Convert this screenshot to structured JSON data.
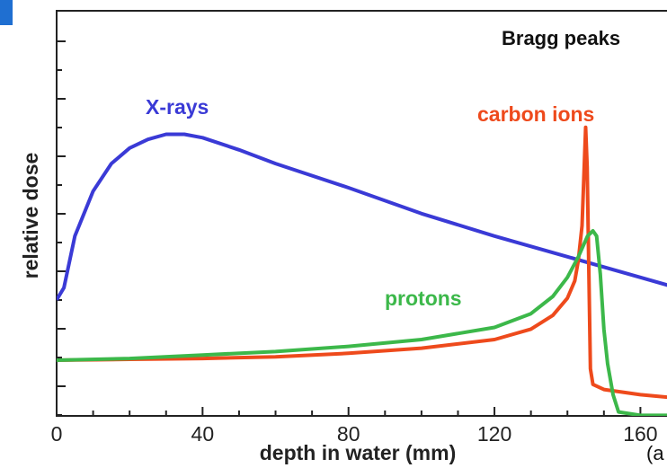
{
  "chart_data": {
    "type": "line",
    "title": "",
    "xlabel": "depth in water (mm)",
    "ylabel": "relative dose",
    "xlim": [
      0,
      170
    ],
    "x_ticks": [
      0,
      40,
      80,
      120,
      160
    ],
    "y_ticks_count": 7,
    "grid": false,
    "legend": "inline labels",
    "annotations": {
      "bragg": "Bragg peaks",
      "panel": "(a"
    },
    "series": [
      {
        "name": "X-rays",
        "color": "#3a3ad6",
        "points": [
          [
            0,
            0.35
          ],
          [
            2,
            0.42
          ],
          [
            5,
            0.72
          ],
          [
            10,
            0.98
          ],
          [
            15,
            1.14
          ],
          [
            20,
            1.23
          ],
          [
            25,
            1.28
          ],
          [
            30,
            1.31
          ],
          [
            35,
            1.31
          ],
          [
            40,
            1.29
          ],
          [
            50,
            1.22
          ],
          [
            60,
            1.14
          ],
          [
            80,
            1.0
          ],
          [
            100,
            0.85
          ],
          [
            120,
            0.72
          ],
          [
            140,
            0.6
          ],
          [
            160,
            0.48
          ],
          [
            170,
            0.42
          ]
        ]
      },
      {
        "name": "carbon ions",
        "color": "#ee4a1c",
        "points": [
          [
            0,
            0.0
          ],
          [
            20,
            0.005
          ],
          [
            40,
            0.01
          ],
          [
            60,
            0.02
          ],
          [
            80,
            0.04
          ],
          [
            100,
            0.07
          ],
          [
            120,
            0.12
          ],
          [
            130,
            0.18
          ],
          [
            136,
            0.26
          ],
          [
            140,
            0.36
          ],
          [
            142,
            0.46
          ],
          [
            143,
            0.58
          ],
          [
            144,
            0.78
          ],
          [
            144.6,
            1.12
          ],
          [
            145,
            1.35
          ],
          [
            145.4,
            1.12
          ],
          [
            145.8,
            0.6
          ],
          [
            146.3,
            -0.05
          ],
          [
            147,
            -0.14
          ],
          [
            150,
            -0.17
          ],
          [
            160,
            -0.2
          ],
          [
            170,
            -0.22
          ]
        ]
      },
      {
        "name": "protons",
        "color": "#3cb84a",
        "points": [
          [
            0,
            0.0
          ],
          [
            20,
            0.01
          ],
          [
            40,
            0.03
          ],
          [
            60,
            0.05
          ],
          [
            80,
            0.08
          ],
          [
            100,
            0.12
          ],
          [
            120,
            0.19
          ],
          [
            130,
            0.27
          ],
          [
            136,
            0.37
          ],
          [
            140,
            0.48
          ],
          [
            143,
            0.6
          ],
          [
            145.5,
            0.72
          ],
          [
            147,
            0.75
          ],
          [
            148,
            0.72
          ],
          [
            149,
            0.5
          ],
          [
            150,
            0.18
          ],
          [
            151,
            -0.02
          ],
          [
            152.5,
            -0.2
          ],
          [
            154,
            -0.3
          ],
          [
            160,
            -0.32
          ],
          [
            170,
            -0.32
          ]
        ]
      }
    ]
  }
}
